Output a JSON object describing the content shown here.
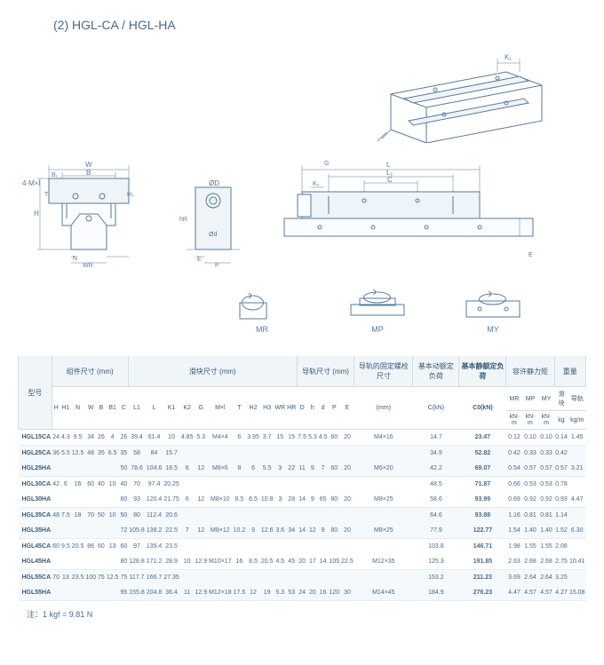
{
  "title": "(2) HGL-CA / HGL-HA",
  "moments": [
    "MR",
    "MP",
    "MY"
  ],
  "headers": {
    "model": "型号",
    "group_assembly": "组件尺寸 (mm)",
    "group_block": "滑块尺寸 (mm)",
    "group_rail": "导轨尺寸 (mm)",
    "group_bolt": "导轨的固定螺栓尺寸",
    "group_dyn": "基本动额定负荷",
    "group_static": "基本静额定负荷",
    "group_moment": "容许静力矩",
    "group_weight": "重量",
    "sub_assembly": [
      "H",
      "H1",
      "N",
      "W",
      "B",
      "B1",
      "C"
    ],
    "sub_block": [
      "L1",
      "L",
      "K1",
      "K2",
      "G",
      "M×l",
      "T",
      "H2",
      "H3",
      "WR",
      "HR"
    ],
    "sub_rail": [
      "D",
      "h",
      "d",
      "P",
      "E"
    ],
    "sub_bolt": "(mm)",
    "sub_dyn": "C(kN)",
    "sub_static": "C0(kN)",
    "sub_moment": [
      "MR",
      "MP",
      "MY"
    ],
    "sub_moment_unit": "kN-m",
    "sub_weight": [
      "滑块",
      "导轨"
    ],
    "sub_weight_unit": [
      "kg",
      "kg/m"
    ]
  },
  "rows": [
    {
      "model": "HGL15CA",
      "vals": [
        "24",
        "4.3",
        "9.5",
        "34",
        "26",
        "4",
        "26",
        "39.4",
        "61.4",
        "10",
        "4.85",
        "5.3",
        "M4×4",
        "6",
        "3.95",
        "3.7",
        "15",
        "15",
        "7.5",
        "5.3",
        "4.5",
        "60",
        "20",
        "M4×16",
        "14.7",
        "23.47",
        "0.12",
        "0.10",
        "0.10",
        "0.14",
        "1.45"
      ],
      "striped": false,
      "pair": "none"
    },
    {
      "model": "HGL25CA",
      "vals": [
        "36",
        "5.5",
        "12.5",
        "48",
        "35",
        "6.5",
        "35",
        "58",
        "84",
        "15.7",
        "",
        "",
        "",
        "",
        "",
        "",
        "",
        "",
        "",
        "",
        "",
        "",
        "",
        "",
        "34.9",
        "52.82",
        "0.42",
        "0.33",
        "0.33",
        "0.42",
        ""
      ],
      "striped": true,
      "pair": "top"
    },
    {
      "model": "HGL25HA",
      "vals": [
        "",
        "",
        "",
        "",
        "",
        "",
        "50",
        "78.6",
        "104.6",
        "18.5",
        "6",
        "12",
        "M6×6",
        "8",
        "6",
        "5.5",
        "3",
        "22",
        "11",
        "9",
        "7",
        "60",
        "20",
        "M6×20",
        "42.2",
        "69.07",
        "0.54",
        "0.57",
        "0.57",
        "0.57",
        "3.21"
      ],
      "striped": true,
      "pair": "bot"
    },
    {
      "model": "HGL30CA",
      "vals": [
        "42",
        "6",
        "16",
        "60",
        "40",
        "10",
        "40",
        "70",
        "97.4",
        "20.25",
        "",
        "",
        "",
        "",
        "",
        "",
        "",
        "",
        "",
        "",
        "",
        "",
        "",
        "",
        "48.5",
        "71.87",
        "0.66",
        "0.53",
        "0.53",
        "0.78",
        ""
      ],
      "striped": false,
      "pair": "top"
    },
    {
      "model": "HGL30HA",
      "vals": [
        "",
        "",
        "",
        "",
        "",
        "",
        "60",
        "93",
        "120.4",
        "21.75",
        "6",
        "12",
        "M8×10",
        "8.5",
        "6.5",
        "10.8",
        "3",
        "28",
        "14",
        "9",
        "65",
        "80",
        "20",
        "M8×25",
        "58.6",
        "93.99",
        "0.68",
        "0.92",
        "0.92",
        "0.93",
        "4.47"
      ],
      "striped": false,
      "pair": "bot"
    },
    {
      "model": "HGL35CA",
      "vals": [
        "48",
        "7.5",
        "18",
        "70",
        "50",
        "10",
        "50",
        "80",
        "112.4",
        "20.6",
        "",
        "",
        "",
        "",
        "",
        "",
        "",
        "",
        "",
        "",
        "",
        "",
        "",
        "",
        "64.6",
        "93.88",
        "1.16",
        "0.81",
        "0.81",
        "1.14",
        ""
      ],
      "striped": true,
      "pair": "top"
    },
    {
      "model": "HGL35HA",
      "vals": [
        "",
        "",
        "",
        "",
        "",
        "",
        "72",
        "105.8",
        "138.2",
        "22.5",
        "7",
        "12",
        "M8×12",
        "10.2",
        "9",
        "12.6",
        "3.6",
        "34",
        "14",
        "12",
        "9",
        "80",
        "20",
        "M8×25",
        "77.9",
        "122.77",
        "1.54",
        "1.40",
        "1.40",
        "1.52",
        "6.30"
      ],
      "striped": true,
      "pair": "bot"
    },
    {
      "model": "HGL45CA",
      "vals": [
        "60",
        "9.5",
        "20.5",
        "86",
        "60",
        "13",
        "60",
        "97",
        "139.4",
        "23.5",
        "",
        "",
        "",
        "",
        "",
        "",
        "",
        "",
        "",
        "",
        "",
        "",
        "",
        "",
        "103.8",
        "146.71",
        "1.98",
        "1.55",
        "1.55",
        "2.08",
        ""
      ],
      "striped": false,
      "pair": "top"
    },
    {
      "model": "HGL45HA",
      "vals": [
        "",
        "",
        "",
        "",
        "",
        "",
        "80",
        "128.8",
        "171.2",
        "28.9",
        "10",
        "12.9",
        "M10×17",
        "16",
        "8.5",
        "20.5",
        "4.5",
        "45",
        "20",
        "17",
        "14",
        "105",
        "22.5",
        "M12×35",
        "125.3",
        "191.85",
        "2.63",
        "2.68",
        "2.68",
        "2.75",
        "10.41"
      ],
      "striped": false,
      "pair": "bot"
    },
    {
      "model": "HGL55CA",
      "vals": [
        "70",
        "13",
        "23.5",
        "100",
        "75",
        "12.5",
        "75",
        "117.7",
        "166.7",
        "27.35",
        "",
        "",
        "",
        "",
        "",
        "",
        "",
        "",
        "",
        "",
        "",
        "",
        "",
        "",
        "153.2",
        "211.23",
        "3.69",
        "2.64",
        "2.64",
        "3.25",
        ""
      ],
      "striped": true,
      "pair": "top"
    },
    {
      "model": "HGL55HA",
      "vals": [
        "",
        "",
        "",
        "",
        "",
        "",
        "95",
        "155.8",
        "204.8",
        "36.4",
        "11",
        "12.9",
        "M12×18",
        "17.5",
        "12",
        "19",
        "5.3",
        "53",
        "24",
        "20",
        "16",
        "120",
        "30",
        "M14×45",
        "184.9",
        "276.23",
        "4.47",
        "4.57",
        "4.57",
        "4.27",
        "15.08"
      ],
      "striped": true,
      "pair": "bot"
    }
  ],
  "footnote": "注：1 kgf = 9.81 N",
  "style": {
    "line_color": "#5a7a9a",
    "bg": "#fafcfd"
  }
}
